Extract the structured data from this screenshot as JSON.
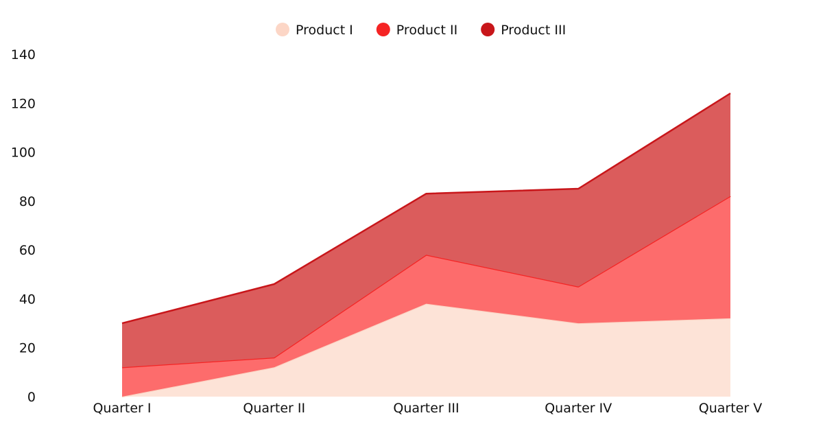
{
  "chart_data": {
    "type": "area",
    "stacked": true,
    "categories": [
      "Quarter I",
      "Quarter II",
      "Quarter III",
      "Quarter IV",
      "Quarter V"
    ],
    "series": [
      {
        "name": "Product I",
        "values": [
          0,
          12,
          38,
          30,
          32
        ],
        "fill": "#fde3d7",
        "stroke": "#fcd6c6",
        "marker": "#fcd6c6"
      },
      {
        "name": "Product II",
        "values": [
          12,
          4,
          20,
          15,
          50
        ],
        "fill": "#fd6c6c",
        "stroke": "#f52424",
        "marker": "#f52424"
      },
      {
        "name": "Product III",
        "values": [
          18,
          30,
          25,
          40,
          42
        ],
        "fill": "#db5c5c",
        "stroke": "#c8161a",
        "marker": "#c8161a"
      }
    ],
    "y_ticks": [
      0,
      20,
      40,
      60,
      80,
      100,
      120,
      140
    ],
    "ylim": [
      0,
      140
    ],
    "title": "",
    "xlabel": "",
    "ylabel": "",
    "grid": false,
    "legend_position": "top-center"
  }
}
